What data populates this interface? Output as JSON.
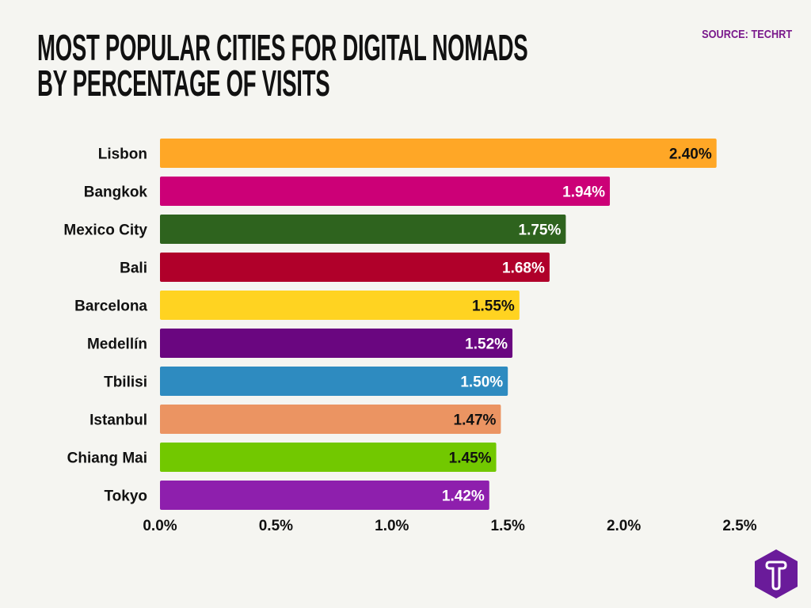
{
  "title_lines": [
    "MOST POPULAR CITIES FOR DIGITAL NOMADS",
    "BY PERCENTAGE OF VISITS"
  ],
  "source": "SOURCE: TECHRT",
  "logo": {
    "name": "techrt-logo",
    "color": "#6a1b9a",
    "letter": "T"
  },
  "chart_data": {
    "type": "bar",
    "orientation": "horizontal",
    "title": "MOST POPULAR CITIES FOR DIGITAL NOMADS BY PERCENTAGE OF VISITS",
    "categories": [
      "Lisbon",
      "Bangkok",
      "Mexico City",
      "Bali",
      "Barcelona",
      "Medellín",
      "Tbilisi",
      "Istanbul",
      "Chiang Mai",
      "Tokyo"
    ],
    "values": [
      2.4,
      1.94,
      1.75,
      1.68,
      1.55,
      1.52,
      1.5,
      1.47,
      1.45,
      1.42
    ],
    "data_labels": [
      "2.40%",
      "1.94%",
      "1.75%",
      "1.68%",
      "1.55%",
      "1.52%",
      "1.50%",
      "1.47%",
      "1.45%",
      "1.42%"
    ],
    "colors": [
      "#ffa726",
      "#cc0077",
      "#2e631e",
      "#b0002a",
      "#ffd321",
      "#6a0680",
      "#2e8bc0",
      "#eb9462",
      "#72c800",
      "#8e1fad"
    ],
    "label_colors": [
      "#111111",
      "#ffffff",
      "#ffffff",
      "#ffffff",
      "#111111",
      "#ffffff",
      "#ffffff",
      "#111111",
      "#111111",
      "#ffffff"
    ],
    "xlim": [
      0,
      2.5
    ],
    "xticks": [
      0,
      0.5,
      1.0,
      1.5,
      2.0,
      2.5
    ],
    "xtick_labels": [
      "0.0%",
      "0.5%",
      "1.0%",
      "1.5%",
      "2.0%",
      "2.5%"
    ],
    "grid": false,
    "legend": "none"
  }
}
